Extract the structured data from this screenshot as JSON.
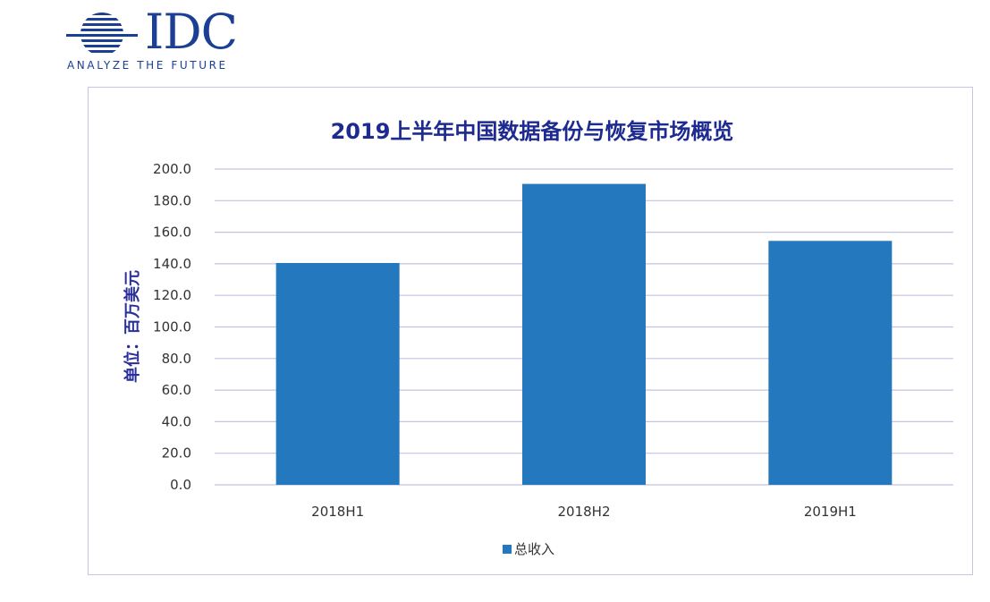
{
  "logo": {
    "wordmark": "IDC",
    "tagline": "ANALYZE THE FUTURE",
    "icon": "idc-globe-icon",
    "color": "#1b3f93"
  },
  "chart_data": {
    "type": "bar",
    "title": "2019上半年中国数据备份与恢复市场概览",
    "ylabel": "单位：百万美元",
    "xlabel": "",
    "categories": [
      "2018H1",
      "2018H2",
      "2019H1"
    ],
    "series": [
      {
        "name": "总收入",
        "values": [
          140.5,
          190.6,
          154.5
        ],
        "color": "#2478be"
      }
    ],
    "ylim": [
      0,
      200
    ],
    "yticks": [
      "0.0",
      "20.0",
      "40.0",
      "60.0",
      "80.0",
      "100.0",
      "120.0",
      "140.0",
      "160.0",
      "180.0",
      "200.0"
    ],
    "grid": true,
    "legend_position": "bottom-center"
  }
}
